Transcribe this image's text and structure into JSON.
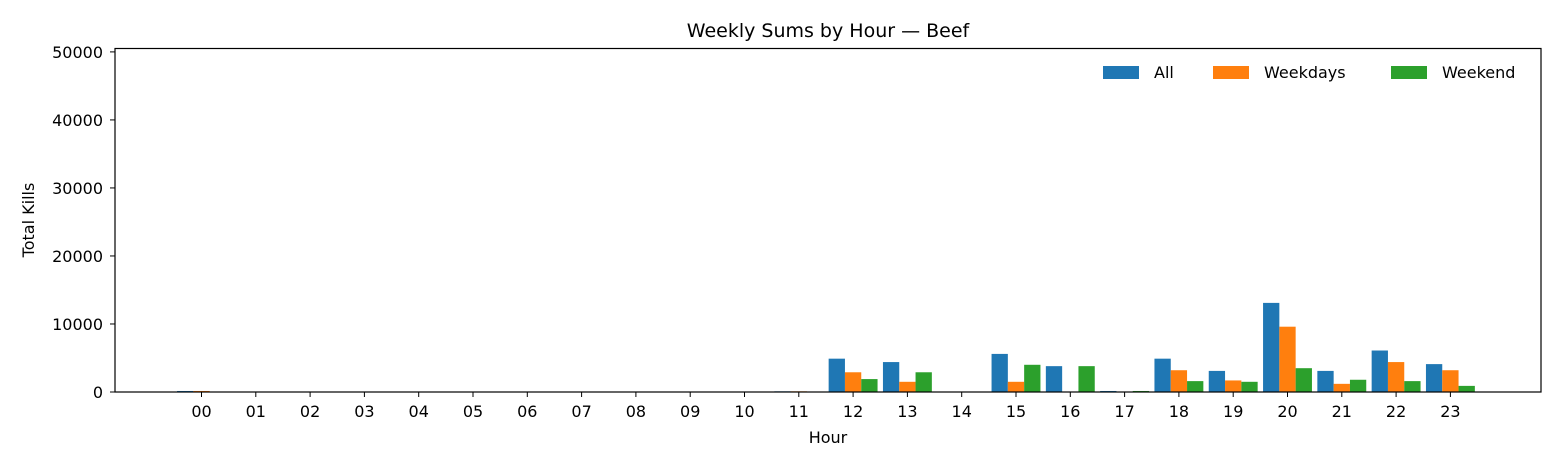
{
  "chart_data": {
    "type": "bar",
    "title": "Weekly Sums by Hour — Beef",
    "xlabel": "Hour",
    "ylabel": "Total Kills",
    "ylim": [
      0,
      50500
    ],
    "yticks": [
      0,
      10000,
      20000,
      30000,
      40000,
      50000
    ],
    "grid": false,
    "legend_position": "top-right",
    "categories": [
      "00",
      "01",
      "02",
      "03",
      "04",
      "05",
      "06",
      "07",
      "08",
      "09",
      "10",
      "11",
      "12",
      "13",
      "14",
      "15",
      "16",
      "17",
      "18",
      "19",
      "20",
      "21",
      "22",
      "23"
    ],
    "series": [
      {
        "name": "All",
        "color": "#1f77b4",
        "values": [
          150,
          0,
          0,
          0,
          0,
          0,
          0,
          0,
          0,
          0,
          0,
          100,
          4900,
          4400,
          0,
          5600,
          3800,
          150,
          4900,
          3100,
          13100,
          3100,
          6100,
          4100
        ]
      },
      {
        "name": "Weekdays",
        "color": "#ff7f0e",
        "values": [
          150,
          0,
          0,
          0,
          0,
          0,
          0,
          0,
          0,
          0,
          0,
          100,
          2900,
          1500,
          0,
          1500,
          0,
          0,
          3200,
          1700,
          9600,
          1200,
          4400,
          3200
        ]
      },
      {
        "name": "Weekend",
        "color": "#2ca02c",
        "values": [
          0,
          0,
          0,
          0,
          0,
          0,
          0,
          0,
          0,
          0,
          0,
          0,
          1900,
          2900,
          0,
          4000,
          3800,
          150,
          1600,
          1500,
          3500,
          1800,
          1600,
          900
        ]
      }
    ]
  }
}
